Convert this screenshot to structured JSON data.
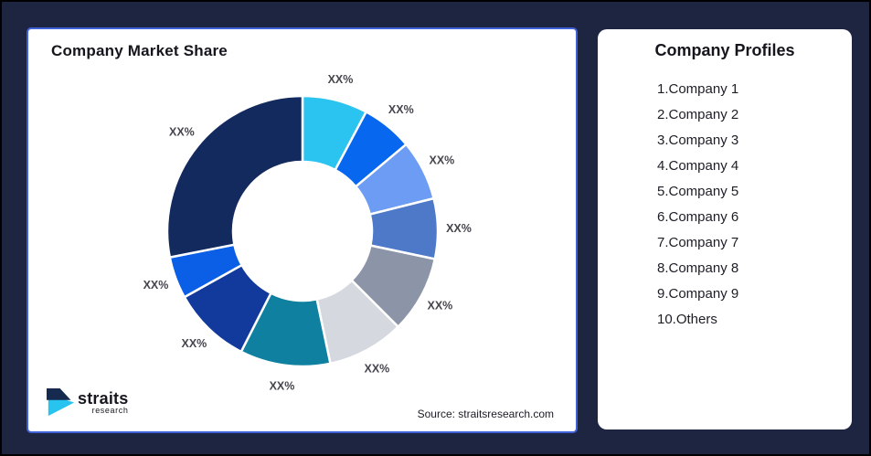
{
  "left_card": {
    "title": "Company Market Share",
    "source": "Source: straitsresearch.com",
    "logo": {
      "brand": "straits",
      "sub": "research",
      "icon": "straits-arrow-icon",
      "icon_colors": {
        "navy": "#16294E",
        "cyan": "#29C3F0"
      }
    }
  },
  "right_card": {
    "title": "Company Profiles",
    "items": [
      "1.Company 1",
      "2.Company 2",
      "3.Company 3",
      "4.Company 4",
      "5.Company 5",
      "6.Company 6",
      "7.Company 7",
      "8.Company 8",
      "9.Company 9",
      "10.Others"
    ]
  },
  "chart_data": {
    "type": "pie",
    "variant": "donut",
    "title": "Company Market Share",
    "data_labels": "all segments display placeholder text XX%",
    "note": "percent values are visual estimates measured from arc angles; actual values are masked as XX% in the image",
    "legend": "none",
    "segments": [
      {
        "label": "XX%",
        "value": 7.8,
        "color": "#2BC3F0"
      },
      {
        "label": "XX%",
        "value": 6.1,
        "color": "#0767EF"
      },
      {
        "label": "XX%",
        "value": 7.2,
        "color": "#6C9CF4"
      },
      {
        "label": "XX%",
        "value": 7.2,
        "color": "#4D79C8"
      },
      {
        "label": "XX%",
        "value": 9.2,
        "color": "#8C94A7"
      },
      {
        "label": "XX%",
        "value": 9.2,
        "color": "#D5D8DE"
      },
      {
        "label": "XX%",
        "value": 10.8,
        "color": "#0F80A0"
      },
      {
        "label": "XX%",
        "value": 9.4,
        "color": "#113A9C"
      },
      {
        "label": "XX%",
        "value": 5.0,
        "color": "#0B5FE6"
      },
      {
        "label": "XX%",
        "value": 28.1,
        "color": "#122A5E"
      }
    ],
    "colors_theme": {
      "background": "#1D2540",
      "card": "#FFFFFF",
      "card_border": "#3F62D8",
      "label_text": "#45454E"
    }
  }
}
